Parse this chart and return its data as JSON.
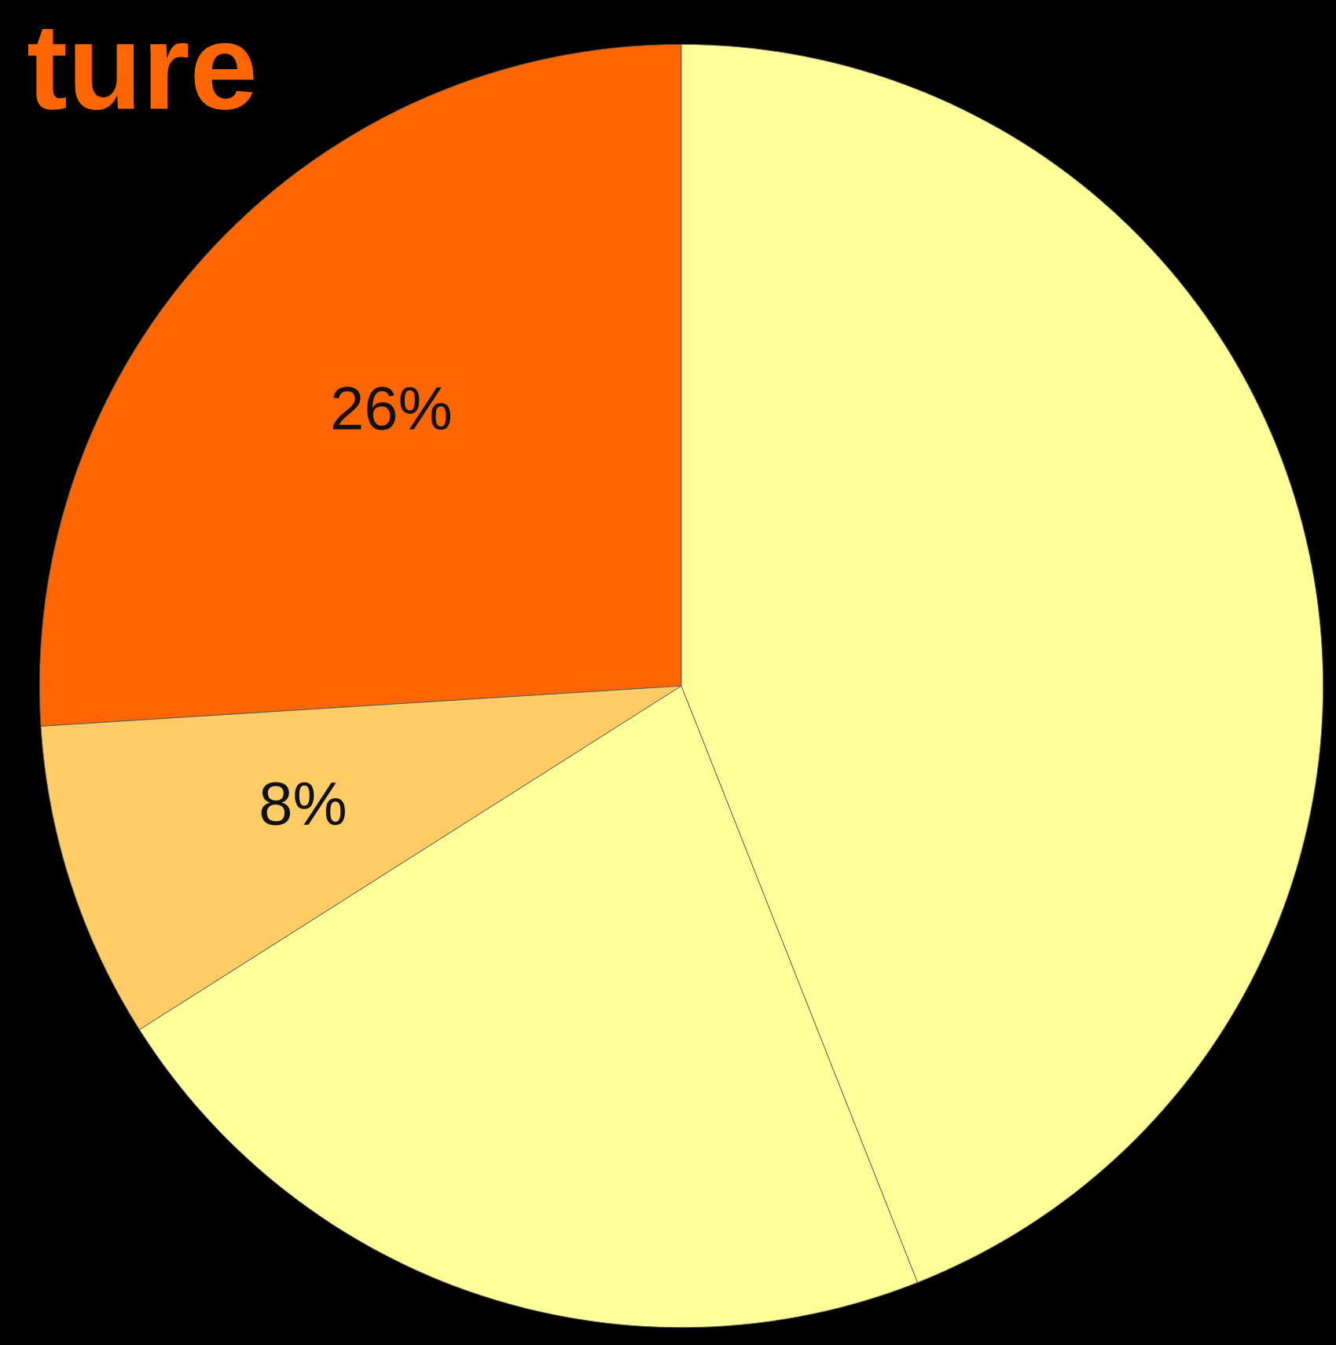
{
  "chart_data": {
    "type": "pie",
    "title": "ture",
    "categories": [
      null,
      null,
      null,
      null
    ],
    "values": [
      26,
      8,
      22,
      44
    ],
    "colors": [
      "#ff6600",
      "#ffcc66",
      "#ffff99",
      "#ffff99"
    ],
    "value_labels": [
      "26%",
      "8%",
      null,
      null
    ],
    "legend": false
  }
}
